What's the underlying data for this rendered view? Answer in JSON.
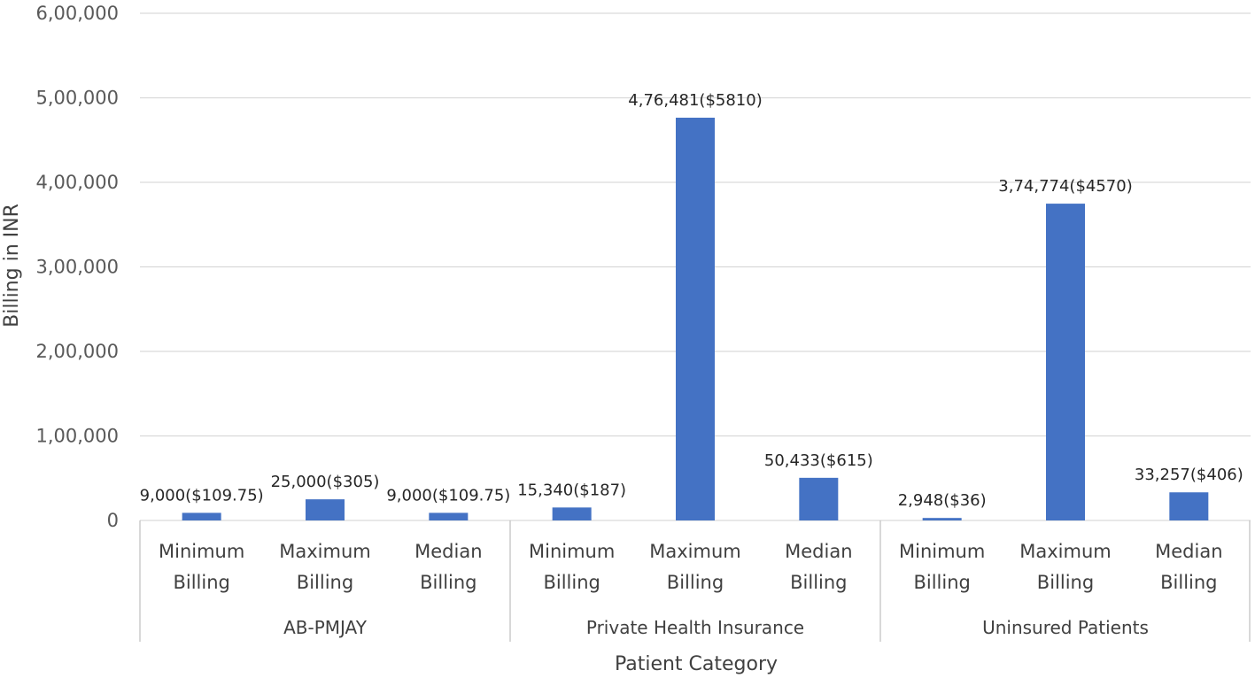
{
  "chart_data": {
    "type": "bar",
    "title": "",
    "xlabel": "Patient Category",
    "ylabel": "Billing in INR",
    "ylim": [
      0,
      600000
    ],
    "yticks": [
      0,
      100000,
      200000,
      300000,
      400000,
      500000,
      600000
    ],
    "ytick_labels": [
      "0",
      "1,00,000",
      "2,00,000",
      "3,00,000",
      "4,00,000",
      "5,00,000",
      "6,00,000"
    ],
    "grid": true,
    "legend": "none",
    "bar_color": "#4472C4",
    "groups": [
      {
        "name": "AB-PMJAY",
        "bars": [
          {
            "category": [
              "Minimum",
              "Billing"
            ],
            "value": 9000,
            "label": "9,000($109.75)"
          },
          {
            "category": [
              "Maximum",
              "Billing"
            ],
            "value": 25000,
            "label": "25,000($305)"
          },
          {
            "category": [
              "Median",
              "Billing"
            ],
            "value": 9000,
            "label": "9,000($109.75)"
          }
        ]
      },
      {
        "name": "Private Health Insurance",
        "bars": [
          {
            "category": [
              "Minimum",
              "Billing"
            ],
            "value": 15340,
            "label": "15,340($187)"
          },
          {
            "category": [
              "Maximum",
              "Billing"
            ],
            "value": 476481,
            "label": "4,76,481($5810)"
          },
          {
            "category": [
              "Median",
              "Billing"
            ],
            "value": 50433,
            "label": "50,433($615)"
          }
        ]
      },
      {
        "name": "Uninsured Patients",
        "bars": [
          {
            "category": [
              "Minimum",
              "Billing"
            ],
            "value": 2948,
            "label": "2,948($36)"
          },
          {
            "category": [
              "Maximum",
              "Billing"
            ],
            "value": 374774,
            "label": "3,74,774($4570)"
          },
          {
            "category": [
              "Median",
              "Billing"
            ],
            "value": 33257,
            "label": "33,257($406)"
          }
        ]
      }
    ]
  }
}
